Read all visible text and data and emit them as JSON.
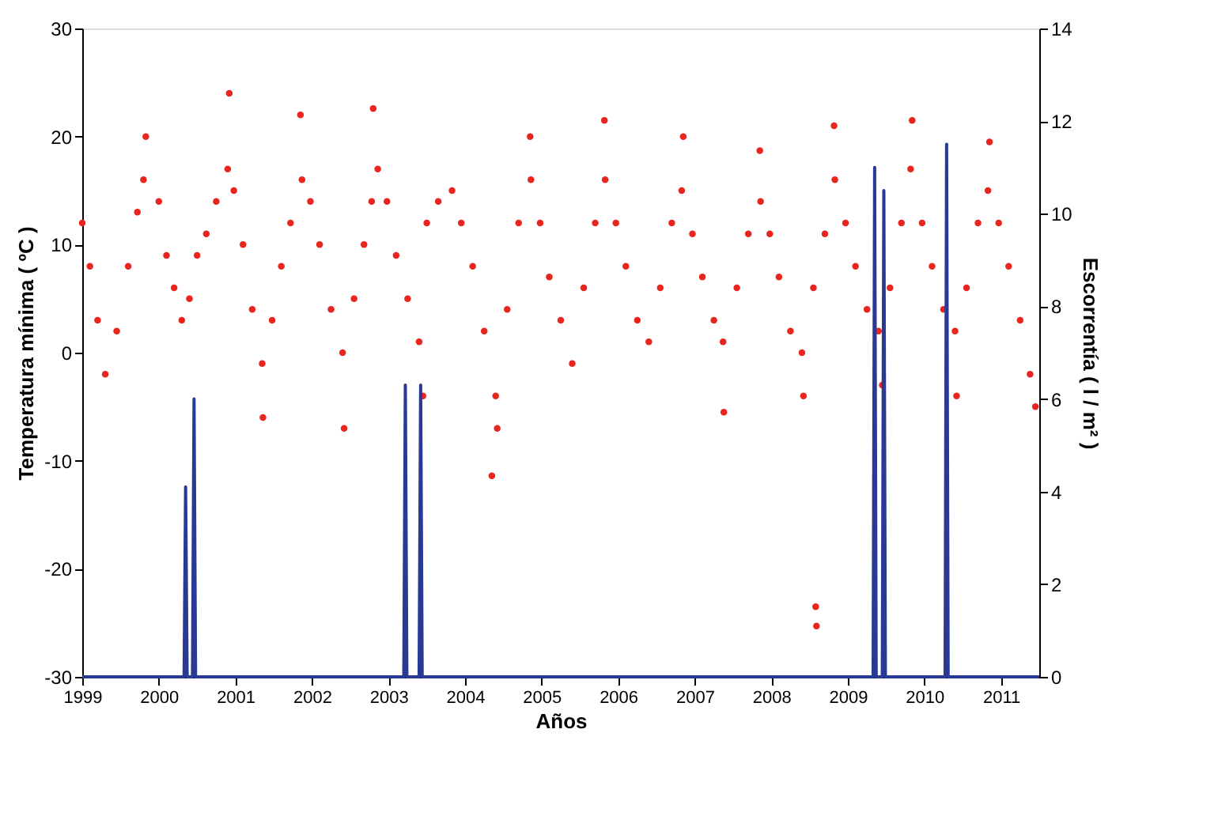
{
  "chart_data": {
    "type": "scatter",
    "xlabel": "Años",
    "ylabel": "Temperatura mínima ( ºC )",
    "y2label": "Escorrentía ( l / m² )",
    "xlim": [
      1999,
      2011.5
    ],
    "xticks": [
      1999,
      2000,
      2001,
      2002,
      2003,
      2004,
      2005,
      2006,
      2007,
      2008,
      2009,
      2010,
      2011
    ],
    "ylim": [
      -30,
      30
    ],
    "yticks": [
      -30,
      -20,
      -10,
      0,
      10,
      20,
      30
    ],
    "y2lim": [
      0,
      14
    ],
    "y2ticks": [
      0,
      2,
      4,
      6,
      8,
      10,
      12,
      14
    ],
    "grid": false,
    "series": [
      {
        "color": "#e8251f",
        "marker": "circle",
        "x": [
          1999.0,
          1999.1,
          1999.2,
          1999.3,
          1999.45,
          1999.6,
          1999.72,
          1999.8,
          1999.83,
          2000.0,
          2000.1,
          2000.2,
          2000.3,
          2000.4,
          2000.5,
          2000.62,
          2000.75,
          2000.9,
          2000.92,
          2000.98,
          2001.1,
          2001.22,
          2001.35,
          2001.36,
          2001.48,
          2001.6,
          2001.72,
          2001.87,
          2001.85,
          2001.98,
          2002.1,
          2002.25,
          2002.4,
          2002.42,
          2002.55,
          2002.68,
          2002.78,
          2002.86,
          2002.8,
          2002.98,
          2003.1,
          2003.25,
          2003.4,
          2003.45,
          2003.5,
          2003.65,
          2003.83,
          2003.95,
          2004.1,
          2004.25,
          2004.4,
          2004.42,
          2004.35,
          2004.55,
          2004.7,
          2004.86,
          2004.85,
          2004.98,
          2005.1,
          2005.25,
          2005.4,
          2005.55,
          2005.7,
          2005.83,
          2005.82,
          2005.97,
          2006.1,
          2006.25,
          2006.4,
          2006.55,
          2006.7,
          2006.83,
          2006.85,
          2006.97,
          2007.1,
          2007.25,
          2007.37,
          2007.38,
          2007.55,
          2007.7,
          2007.86,
          2007.85,
          2007.98,
          2008.1,
          2008.25,
          2008.4,
          2008.42,
          2008.55,
          2008.58,
          2008.59,
          2008.7,
          2008.83,
          2008.82,
          2008.97,
          2009.1,
          2009.25,
          2009.4,
          2009.45,
          2009.55,
          2009.7,
          2009.82,
          2009.84,
          2009.97,
          2010.1,
          2010.25,
          2010.4,
          2010.42,
          2010.55,
          2010.7,
          2010.83,
          2010.85,
          2010.97,
          2011.1,
          2011.25,
          2011.38,
          2011.45
        ],
        "values": [
          12,
          8,
          3,
          -2,
          2,
          8,
          13,
          16,
          20,
          14,
          9,
          6,
          3,
          5,
          9,
          11,
          14,
          17,
          24,
          15,
          10,
          4,
          -1,
          -6,
          3,
          8,
          12,
          16,
          22,
          14,
          10,
          4,
          0,
          -7,
          5,
          10,
          14,
          17,
          22.6,
          14,
          9,
          5,
          1,
          -4,
          12,
          14,
          15,
          12,
          8,
          2,
          -4,
          -7,
          -11.4,
          4,
          12,
          16,
          20,
          12,
          7,
          3,
          -1,
          6,
          12,
          16,
          21.5,
          12,
          8,
          3,
          1,
          6,
          12,
          15,
          20,
          11,
          7,
          3,
          1,
          -5.5,
          6,
          11,
          14,
          18.7,
          11,
          7,
          2,
          0,
          -4,
          6,
          -23.5,
          -25.3,
          11,
          16,
          21,
          12,
          8,
          4,
          2,
          -3,
          6,
          12,
          17,
          21.5,
          12,
          8,
          4,
          2,
          -4,
          6,
          12,
          15,
          19.5,
          12,
          8,
          3,
          -2,
          -5
        ]
      },
      {
        "type": "line",
        "axis": "y2",
        "color": "#2a3a94",
        "x": [
          1999,
          2000.33,
          2000.35,
          2000.37,
          2000.44,
          2000.46,
          2000.48,
          2003.2,
          2003.22,
          2003.24,
          2003.4,
          2003.42,
          2003.44,
          2009.33,
          2009.35,
          2009.37,
          2009.45,
          2009.47,
          2009.49,
          2010.27,
          2010.29,
          2010.31,
          2011.5
        ],
        "values": [
          0,
          0,
          4.1,
          0,
          0,
          6.0,
          0,
          0,
          6.3,
          0,
          0,
          6.3,
          0,
          0,
          11.0,
          0,
          0,
          10.5,
          0,
          0,
          11.5,
          0,
          0
        ]
      }
    ]
  }
}
